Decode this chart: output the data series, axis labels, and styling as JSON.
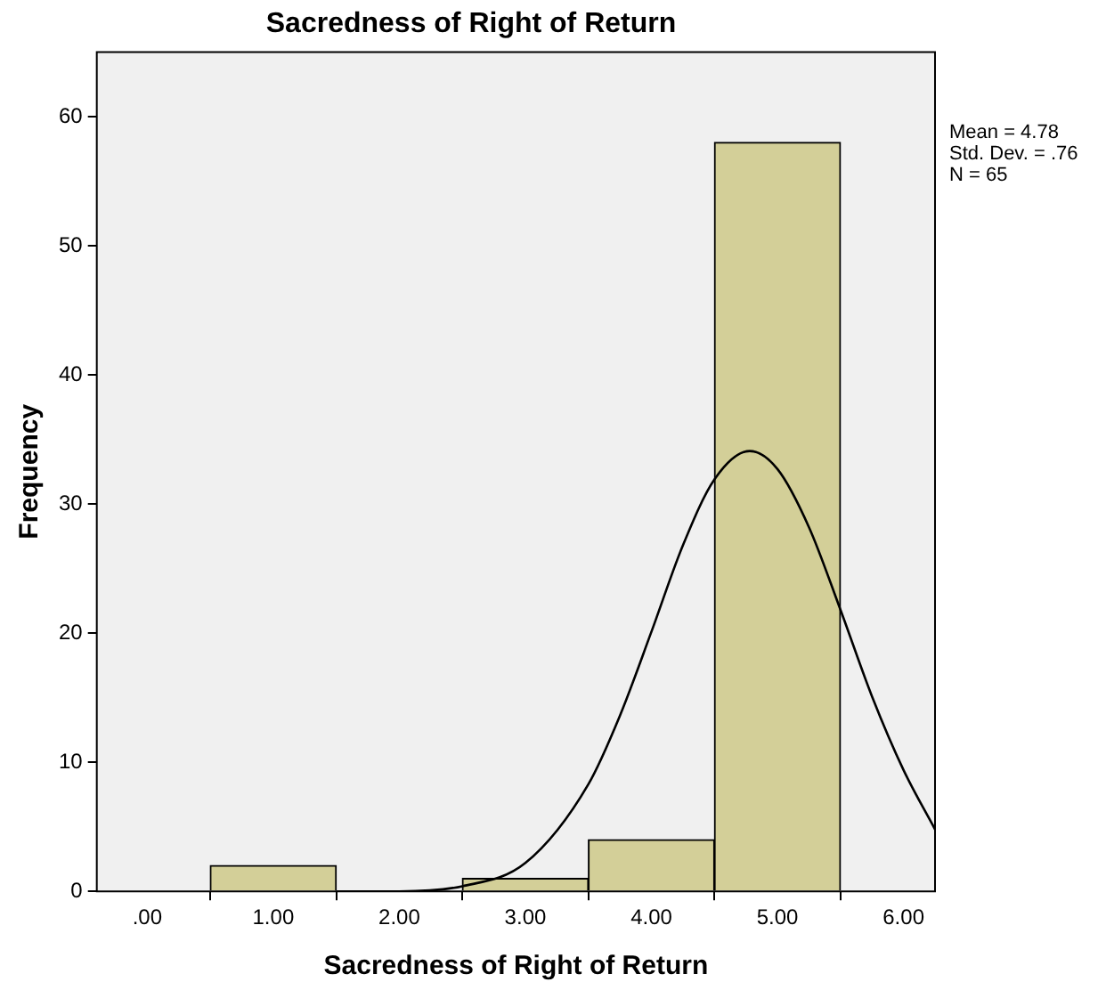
{
  "chart_data": {
    "type": "histogram",
    "title": "Sacredness of Right of Return",
    "xlabel": "Sacredness of Right of Return",
    "ylabel": "Frequency",
    "bins": [
      0.5,
      1.5,
      2.5,
      3.5,
      4.5,
      5.5
    ],
    "values": [
      2,
      0,
      1,
      4,
      58
    ],
    "color": "#d3cf98",
    "series": [
      {
        "type": "line",
        "color": "#000000",
        "x": [
          1.5,
          2.0,
          2.5,
          3.0,
          3.5,
          3.75,
          4.0,
          4.25,
          4.5,
          4.78,
          5.0,
          5.25,
          5.5,
          5.75,
          6.0,
          6.25
        ],
        "values": [
          0,
          0,
          0.4,
          2.2,
          8.3,
          13.6,
          20.1,
          26.8,
          31.9,
          34.1,
          32.7,
          28.2,
          21.8,
          15.1,
          9.4,
          4.8
        ]
      }
    ],
    "xlim": [
      -0.4,
      6.25
    ],
    "xticks": [
      {
        "value": 0,
        "label": ".00"
      },
      {
        "value": 1,
        "label": "1.00"
      },
      {
        "value": 2,
        "label": "2.00"
      },
      {
        "value": 3,
        "label": "3.00"
      },
      {
        "value": 4,
        "label": "4.00"
      },
      {
        "value": 5,
        "label": "5.00"
      },
      {
        "value": 6,
        "label": "6.00"
      }
    ],
    "ylim": [
      0,
      65
    ],
    "yticks": [
      0,
      10,
      20,
      30,
      40,
      50,
      60
    ],
    "grid": false,
    "legend": false,
    "marker": "none",
    "annotations": [
      "Mean = 4.78\nStd. Dev. = .76\nN = 65"
    ]
  }
}
